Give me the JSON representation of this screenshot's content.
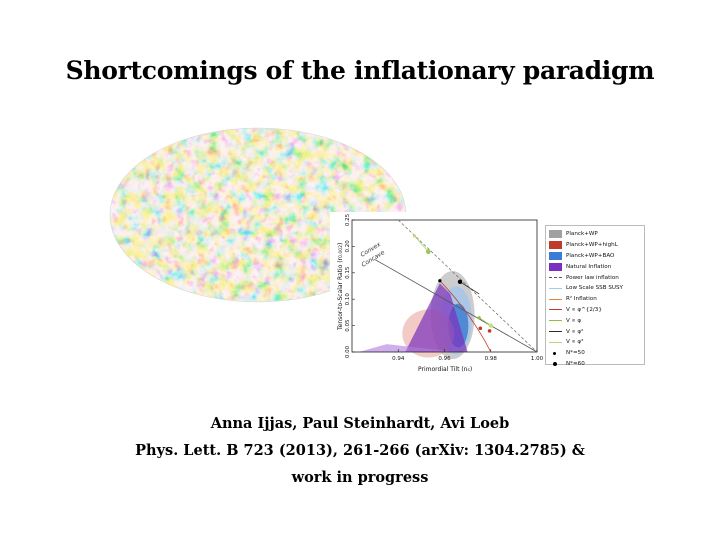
{
  "slide": {
    "title": "Shortcomings of the inflationary paradigm",
    "authors": "Anna Ijjas, Paul Steinhardt, Avi Loeb",
    "reference": "Phys. Lett. B 723 (2013), 261-266 (arXiv: 1304.2785)  &",
    "status": "work in progress"
  },
  "figure": {
    "xlabel": "Primordial Tilt (n",
    "xlabel_sub": "s",
    "xlabel_end": ")",
    "ylabel": "Tensor-to-Scalar Ratio (r",
    "ylabel_sub": "0.002",
    "ylabel_end": ")",
    "xticks": [
      "0.94",
      "0.96",
      "0.98",
      "1.00"
    ],
    "yticks": [
      "0.00",
      "0.05",
      "0.10",
      "0.15",
      "0.20",
      "0.25"
    ],
    "annot_convex": "Convex",
    "annot_concave": "Concave",
    "legend": [
      {
        "label": "Planck+WP",
        "color": "#a0a0a0",
        "style": "box"
      },
      {
        "label": "Planck+WP+highL",
        "color": "#c0392b",
        "style": "box"
      },
      {
        "label": "Planck+WP+BAO",
        "color": "#3a7bd5",
        "style": "box"
      },
      {
        "label": "Natural Inflation",
        "color": "#7b2fbe",
        "style": "box"
      },
      {
        "label": "Power law inflation",
        "color": "#555555",
        "style": "dash"
      },
      {
        "label": "Low Scale SSB SUSY",
        "color": "#9ed0e8",
        "style": "line"
      },
      {
        "label": "R² Inflation",
        "color": "#e08a3c",
        "style": "line"
      },
      {
        "label": "V ∝ φ^{2/3}",
        "color": "#c0392b",
        "style": "line"
      },
      {
        "label": "V ∝ φ",
        "color": "#8fbf3f",
        "style": "line"
      },
      {
        "label": "V ∝ φ²",
        "color": "#2c2c2c",
        "style": "line"
      },
      {
        "label": "V ∝ φ³",
        "color": "#b7d97a",
        "style": "line"
      },
      {
        "label": "N*=50",
        "color": "#000000",
        "style": "dot-small"
      },
      {
        "label": "N*=60",
        "color": "#000000",
        "style": "dot"
      }
    ]
  },
  "chart_data": {
    "type": "scatter",
    "xlabel": "Primordial Tilt (ns)",
    "ylabel": "Tensor-to-Scalar Ratio (r0.002)",
    "xlim": [
      0.92,
      1.0
    ],
    "ylim": [
      0.0,
      0.25
    ],
    "xticks": [
      0.94,
      0.96,
      0.98,
      1.0
    ],
    "yticks": [
      0.0,
      0.05,
      0.1,
      0.15,
      0.2,
      0.25
    ],
    "series": [
      {
        "name": "V ∝ φ²",
        "points": [
          [
            0.9667,
            0.133
          ],
          [
            0.975,
            0.11
          ]
        ]
      },
      {
        "name": "V ∝ φ",
        "points": [
          [
            0.975,
            0.065
          ],
          [
            0.98,
            0.05
          ]
        ]
      },
      {
        "name": "V ∝ φ³",
        "points": [
          [
            0.947,
            0.22
          ],
          [
            0.953,
            0.19
          ]
        ]
      },
      {
        "name": "Power law inflation",
        "points": [
          [
            0.94,
            0.25
          ],
          [
            1.0,
            0.0
          ]
        ]
      }
    ]
  }
}
